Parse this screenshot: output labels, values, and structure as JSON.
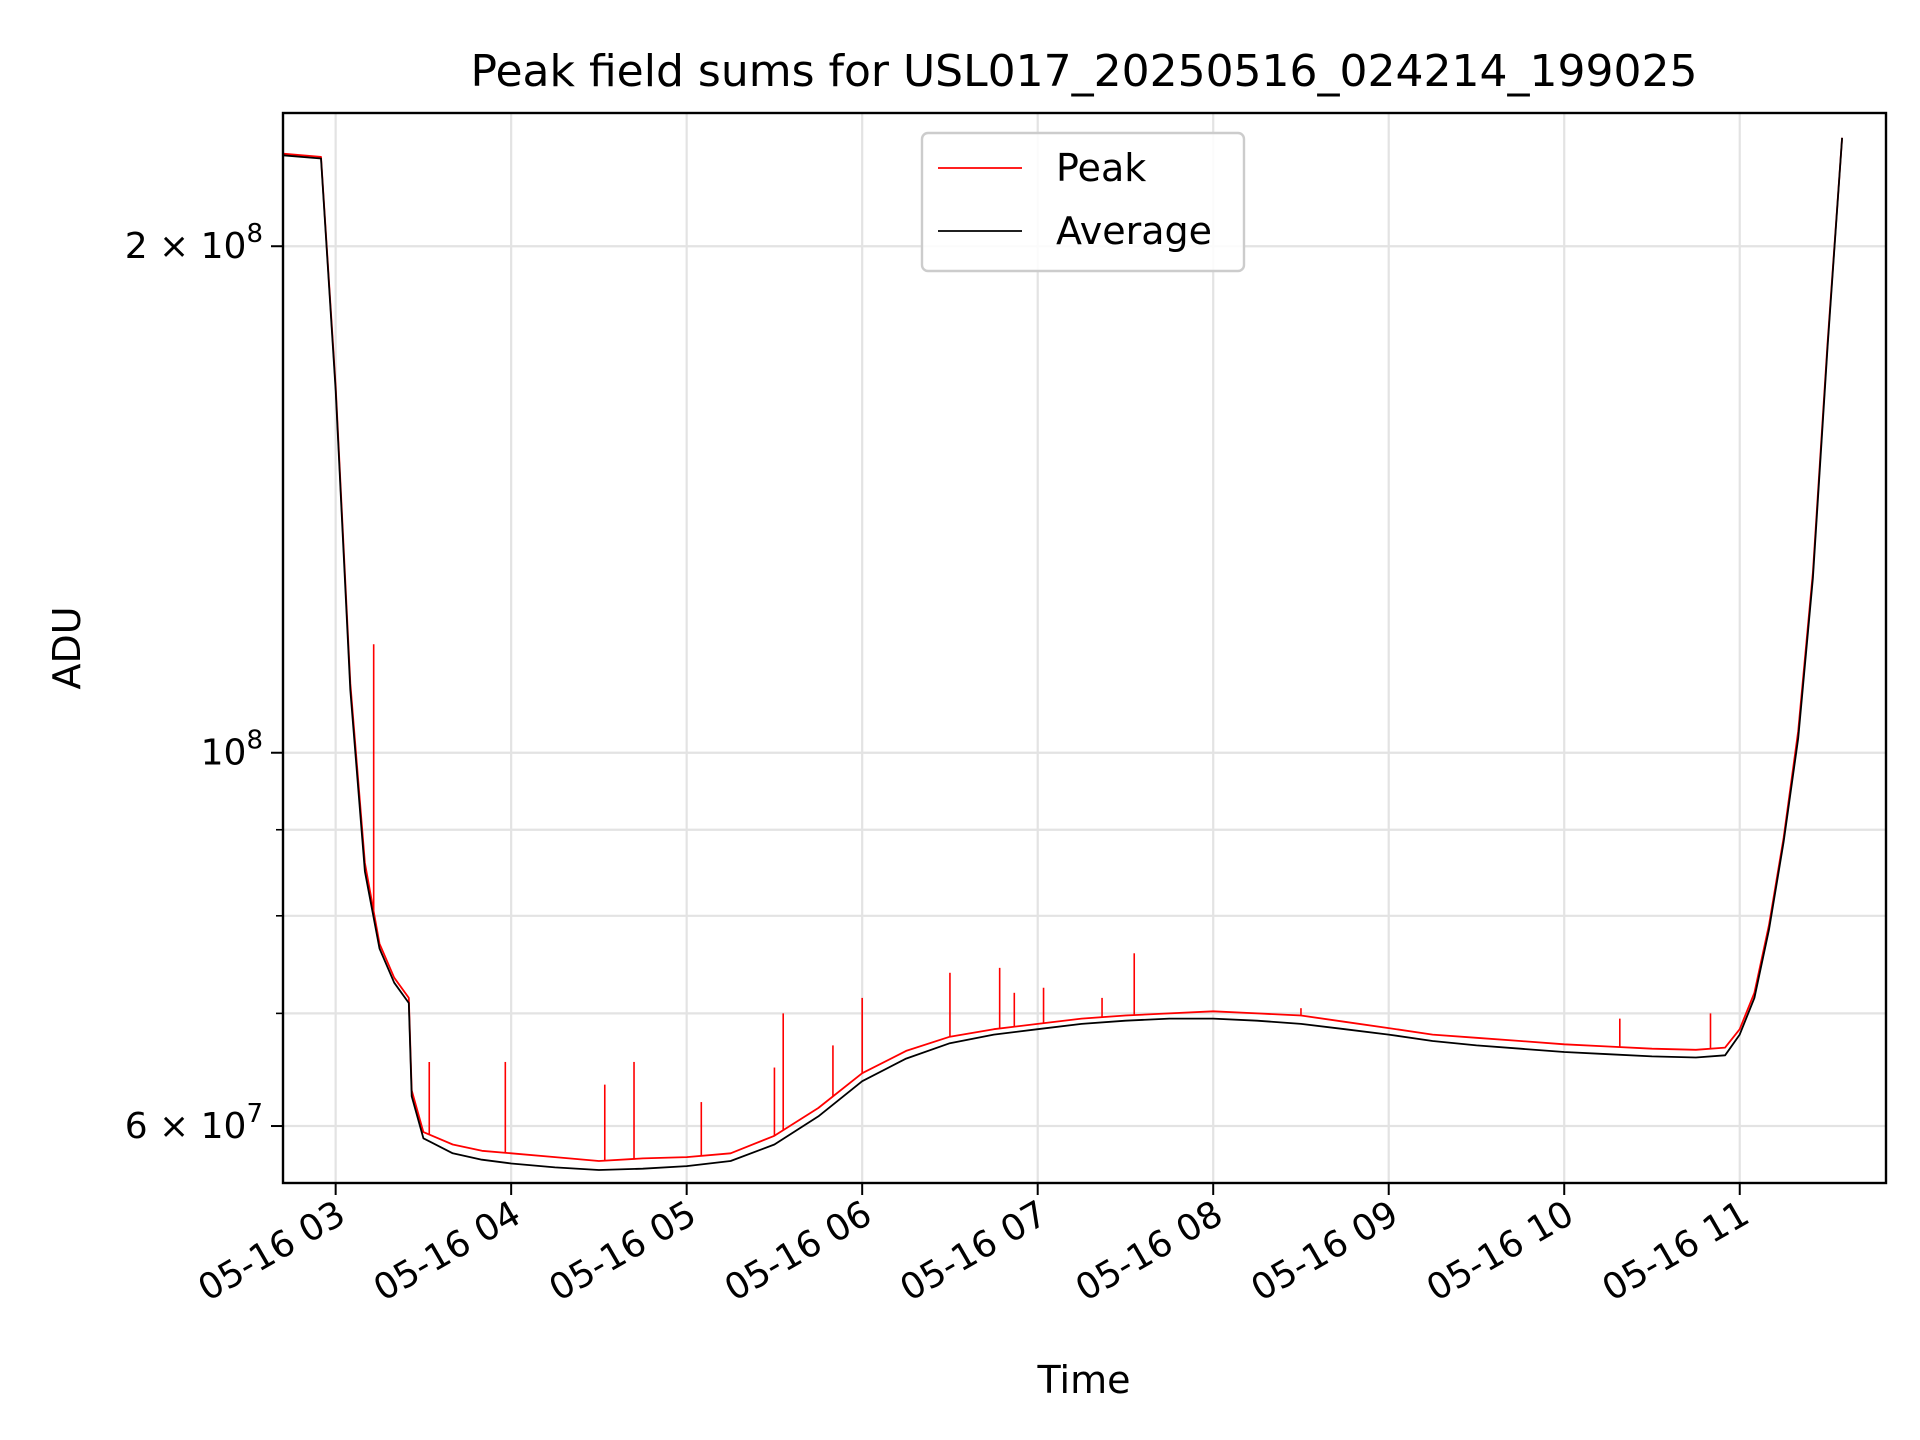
{
  "chart_data": {
    "type": "line",
    "title": "Peak field sums for USL017_20250516_024214_199025",
    "xlabel": "Time",
    "ylabel": "ADU",
    "y_scale": "log",
    "grid": true,
    "legend_placement": "upper center",
    "xlim": [
      "2025-05-16 02:42",
      "2025-05-16 11:50"
    ],
    "ylim": [
      55500000,
      240000000
    ],
    "x_ticks": [
      {
        "value": "2025-05-16 03:00",
        "label": "05-16 03"
      },
      {
        "value": "2025-05-16 04:00",
        "label": "05-16 04"
      },
      {
        "value": "2025-05-16 05:00",
        "label": "05-16 05"
      },
      {
        "value": "2025-05-16 06:00",
        "label": "05-16 06"
      },
      {
        "value": "2025-05-16 07:00",
        "label": "05-16 07"
      },
      {
        "value": "2025-05-16 08:00",
        "label": "05-16 08"
      },
      {
        "value": "2025-05-16 09:00",
        "label": "05-16 09"
      },
      {
        "value": "2025-05-16 10:00",
        "label": "05-16 10"
      },
      {
        "value": "2025-05-16 11:00",
        "label": "05-16 11"
      }
    ],
    "y_major_ticks": [
      {
        "value": 60000000,
        "label_mantissa": "6",
        "label_times": "×",
        "label_base": "10",
        "label_exp": "7"
      },
      {
        "value": 100000000,
        "label_mantissa": "",
        "label_times": "",
        "label_base": "10",
        "label_exp": "8"
      },
      {
        "value": 200000000,
        "label_mantissa": "2",
        "label_times": "×",
        "label_base": "10",
        "label_exp": "8"
      }
    ],
    "y_minor_ticks": [
      70000000,
      80000000,
      90000000
    ],
    "series": [
      {
        "name": "Peak",
        "color": "#ff0000",
        "x": [
          "2025-05-16 02:42",
          "2025-05-16 02:55",
          "2025-05-16 03:00",
          "2025-05-16 03:05",
          "2025-05-16 03:10",
          "2025-05-16 03:15",
          "2025-05-16 03:20",
          "2025-05-16 03:25",
          "2025-05-16 03:26",
          "2025-05-16 03:30",
          "2025-05-16 03:40",
          "2025-05-16 03:50",
          "2025-05-16 04:00",
          "2025-05-16 04:15",
          "2025-05-16 04:30",
          "2025-05-16 04:45",
          "2025-05-16 05:00",
          "2025-05-16 05:15",
          "2025-05-16 05:30",
          "2025-05-16 05:45",
          "2025-05-16 06:00",
          "2025-05-16 06:15",
          "2025-05-16 06:30",
          "2025-05-16 06:45",
          "2025-05-16 07:00",
          "2025-05-16 07:15",
          "2025-05-16 07:30",
          "2025-05-16 07:45",
          "2025-05-16 08:00",
          "2025-05-16 08:15",
          "2025-05-16 08:30",
          "2025-05-16 08:45",
          "2025-05-16 09:00",
          "2025-05-16 09:15",
          "2025-05-16 09:30",
          "2025-05-16 09:45",
          "2025-05-16 10:00",
          "2025-05-16 10:15",
          "2025-05-16 10:30",
          "2025-05-16 10:45",
          "2025-05-16 10:55",
          "2025-05-16 11:00",
          "2025-05-16 11:05",
          "2025-05-16 11:10",
          "2025-05-16 11:15",
          "2025-05-16 11:20",
          "2025-05-16 11:25",
          "2025-05-16 11:30",
          "2025-05-16 11:35"
        ],
        "y": [
          227000000,
          226000000,
          165000000,
          110000000,
          86000000,
          77000000,
          73500000,
          71500000,
          63000000,
          59500000,
          58500000,
          58000000,
          57800000,
          57500000,
          57200000,
          57400000,
          57500000,
          57800000,
          59200000,
          61500000,
          64500000,
          66500000,
          67800000,
          68500000,
          69000000,
          69500000,
          69800000,
          70000000,
          70200000,
          70000000,
          69800000,
          69200000,
          68600000,
          68000000,
          67700000,
          67400000,
          67100000,
          66900000,
          66700000,
          66600000,
          66800000,
          68500000,
          72000000,
          79000000,
          89000000,
          103000000,
          128000000,
          175000000,
          232000000
        ],
        "spikes": [
          {
            "x": "2025-05-16 03:13",
            "y": 116000000
          },
          {
            "x": "2025-05-16 03:32",
            "y": 65500000
          },
          {
            "x": "2025-05-16 03:58",
            "y": 65500000
          },
          {
            "x": "2025-05-16 04:32",
            "y": 63500000
          },
          {
            "x": "2025-05-16 04:42",
            "y": 65500000
          },
          {
            "x": "2025-05-16 04:65",
            "y": 62000000
          },
          {
            "x": "2025-05-16 05:30",
            "y": 65000000
          },
          {
            "x": "2025-05-16 05:33",
            "y": 70000000
          },
          {
            "x": "2025-05-16 05:50",
            "y": 67000000
          },
          {
            "x": "2025-05-16 06:00",
            "y": 71500000
          },
          {
            "x": "2025-05-16 06:30",
            "y": 74000000
          },
          {
            "x": "2025-05-16 06:47",
            "y": 74500000
          },
          {
            "x": "2025-05-16 06:52",
            "y": 72000000
          },
          {
            "x": "2025-05-16 07:02",
            "y": 72500000
          },
          {
            "x": "2025-05-16 07:22",
            "y": 71500000
          },
          {
            "x": "2025-05-16 07:33",
            "y": 76000000
          },
          {
            "x": "2025-05-16 08:30",
            "y": 70500000
          },
          {
            "x": "2025-05-16 10:19",
            "y": 69500000
          },
          {
            "x": "2025-05-16 10:50",
            "y": 70000000
          }
        ]
      },
      {
        "name": "Average",
        "color": "#000000",
        "x": [
          "2025-05-16 02:42",
          "2025-05-16 02:55",
          "2025-05-16 03:00",
          "2025-05-16 03:05",
          "2025-05-16 03:10",
          "2025-05-16 03:15",
          "2025-05-16 03:20",
          "2025-05-16 03:25",
          "2025-05-16 03:26",
          "2025-05-16 03:30",
          "2025-05-16 03:40",
          "2025-05-16 03:50",
          "2025-05-16 04:00",
          "2025-05-16 04:15",
          "2025-05-16 04:30",
          "2025-05-16 04:45",
          "2025-05-16 05:00",
          "2025-05-16 05:15",
          "2025-05-16 05:30",
          "2025-05-16 05:45",
          "2025-05-16 06:00",
          "2025-05-16 06:15",
          "2025-05-16 06:30",
          "2025-05-16 06:45",
          "2025-05-16 07:00",
          "2025-05-16 07:15",
          "2025-05-16 07:30",
          "2025-05-16 07:45",
          "2025-05-16 08:00",
          "2025-05-16 08:15",
          "2025-05-16 08:30",
          "2025-05-16 08:45",
          "2025-05-16 09:00",
          "2025-05-16 09:15",
          "2025-05-16 09:30",
          "2025-05-16 09:45",
          "2025-05-16 10:00",
          "2025-05-16 10:15",
          "2025-05-16 10:30",
          "2025-05-16 10:45",
          "2025-05-16 10:55",
          "2025-05-16 11:00",
          "2025-05-16 11:05",
          "2025-05-16 11:10",
          "2025-05-16 11:15",
          "2025-05-16 11:20",
          "2025-05-16 11:25",
          "2025-05-16 11:30",
          "2025-05-16 11:35"
        ],
        "y": [
          226500000,
          225500000,
          164000000,
          109000000,
          85000000,
          76500000,
          73000000,
          71000000,
          62500000,
          59000000,
          57800000,
          57300000,
          57000000,
          56700000,
          56500000,
          56600000,
          56800000,
          57200000,
          58500000,
          60800000,
          63800000,
          65800000,
          67200000,
          68000000,
          68500000,
          69000000,
          69300000,
          69500000,
          69500000,
          69300000,
          69000000,
          68500000,
          68000000,
          67400000,
          67000000,
          66700000,
          66400000,
          66200000,
          66000000,
          65900000,
          66100000,
          68000000,
          71500000,
          78500000,
          88500000,
          102000000,
          127000000,
          174000000,
          232000000
        ]
      }
    ]
  }
}
